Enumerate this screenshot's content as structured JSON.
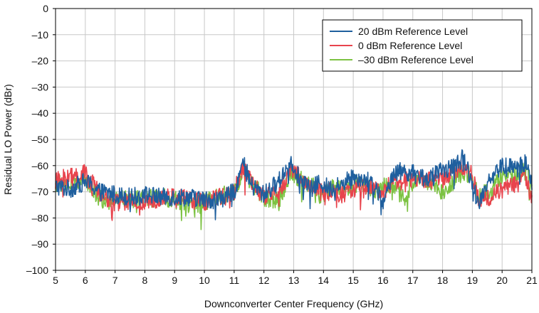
{
  "chart_data": {
    "type": "line",
    "xlabel": "Downconverter Center Frequency (GHz)",
    "ylabel": "Residual LO Power (dBr)",
    "xlim": [
      5,
      21
    ],
    "ylim": [
      -100,
      0
    ],
    "x_ticks": [
      "5",
      "6",
      "7",
      "8",
      "9",
      "10",
      "11",
      "12",
      "13",
      "14",
      "15",
      "16",
      "17",
      "18",
      "19",
      "20",
      "21"
    ],
    "y_ticks": [
      "0",
      "–10",
      "–20",
      "–30",
      "–40",
      "–50",
      "–60",
      "–70",
      "–80",
      "–90",
      "–100"
    ],
    "grid": true,
    "legend_position": "top-right",
    "series": [
      {
        "name": "20 dBm Reference Level",
        "color": "#1f5f9e",
        "x": [
          5,
          5.5,
          6,
          6.5,
          7,
          7.5,
          8,
          8.5,
          9,
          9.5,
          10,
          10.5,
          11,
          11.3,
          11.6,
          12,
          12.5,
          12.9,
          13.2,
          13.6,
          13.9,
          14.2,
          14.6,
          15,
          15.4,
          15.8,
          16,
          16.3,
          16.7,
          17,
          17.5,
          18,
          18.4,
          18.7,
          19,
          19.2,
          19.5,
          20,
          20.5,
          20.8,
          21
        ],
        "values": [
          -68,
          -69,
          -66,
          -70,
          -71,
          -72,
          -71,
          -72,
          -72,
          -72,
          -73,
          -73,
          -70,
          -59,
          -68,
          -71,
          -66,
          -58,
          -65,
          -69,
          -66,
          -69,
          -67,
          -64,
          -65,
          -69,
          -76,
          -63,
          -62,
          -63,
          -65,
          -62,
          -60,
          -57,
          -66,
          -75,
          -66,
          -60,
          -61,
          -59,
          -67
        ]
      },
      {
        "name": "0 dBm Reference Level",
        "color": "#e8444d",
        "x": [
          5,
          5.5,
          6,
          6.5,
          7,
          7.5,
          8,
          8.5,
          9,
          9.5,
          10,
          10.5,
          11,
          11.3,
          11.6,
          12,
          12.5,
          12.9,
          13.2,
          13.6,
          13.9,
          14.2,
          14.6,
          15,
          15.4,
          15.8,
          16,
          16.3,
          16.7,
          17,
          17.5,
          18,
          18.4,
          18.7,
          19,
          19.2,
          19.5,
          20,
          20.5,
          20.8,
          21
        ],
        "values": [
          -66,
          -64,
          -63,
          -71,
          -74,
          -74,
          -75,
          -72,
          -72,
          -73,
          -74,
          -72,
          -70,
          -60,
          -67,
          -72,
          -70,
          -61,
          -64,
          -69,
          -70,
          -70,
          -71,
          -69,
          -68,
          -69,
          -70,
          -66,
          -66,
          -65,
          -66,
          -64,
          -63,
          -60,
          -64,
          -73,
          -72,
          -69,
          -67,
          -64,
          -74
        ]
      },
      {
        "name": "–30 dBm Reference Level",
        "color": "#7cc242",
        "x": [
          5,
          5.5,
          6,
          6.5,
          7,
          7.5,
          8,
          8.5,
          9,
          9.5,
          10,
          10.5,
          11,
          11.3,
          11.6,
          12,
          12.5,
          12.9,
          13.2,
          13.6,
          13.9,
          14.2,
          14.6,
          15,
          15.4,
          15.8,
          16,
          16.3,
          16.7,
          17,
          17.5,
          18,
          18.4,
          18.7,
          19,
          19.2,
          19.5,
          20,
          20.5,
          20.8,
          21
        ],
        "values": [
          -67,
          -67,
          -65,
          -73,
          -72,
          -73,
          -73,
          -72,
          -73,
          -75,
          -74,
          -72,
          -70,
          -61,
          -67,
          -72,
          -74,
          -62,
          -65,
          -67,
          -72,
          -68,
          -69,
          -67,
          -67,
          -70,
          -68,
          -67,
          -73,
          -66,
          -66,
          -70,
          -66,
          -62,
          -64,
          -72,
          -70,
          -64,
          -63,
          -62,
          -69
        ]
      }
    ]
  }
}
